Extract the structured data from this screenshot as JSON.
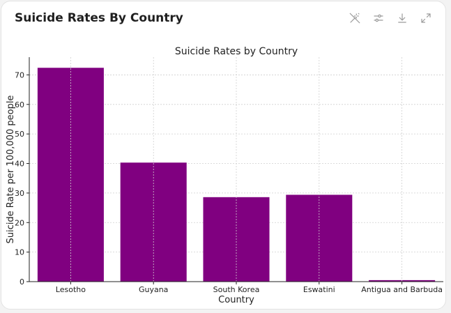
{
  "card": {
    "title": "Suicide Rates By Country"
  },
  "toolbar": {
    "icons": [
      "wand-off-icon",
      "sliders-icon",
      "download-icon",
      "expand-icon"
    ]
  },
  "colors": {
    "bar": "#800080",
    "grid": "#cfcfcf",
    "axis": "#222222"
  },
  "chart_data": {
    "type": "bar",
    "title": "Suicide Rates by Country",
    "xlabel": "Country",
    "ylabel": "Suicide Rate per 100,000 people",
    "categories": [
      "Lesotho",
      "Guyana",
      "South Korea",
      "Eswatini",
      "Antigua and Barbuda"
    ],
    "values": [
      72.4,
      40.3,
      28.6,
      29.4,
      0.5
    ],
    "ylim": [
      0,
      76
    ],
    "yticks": [
      0,
      10,
      20,
      30,
      40,
      50,
      60,
      70
    ],
    "grid": true,
    "legend": "none"
  }
}
